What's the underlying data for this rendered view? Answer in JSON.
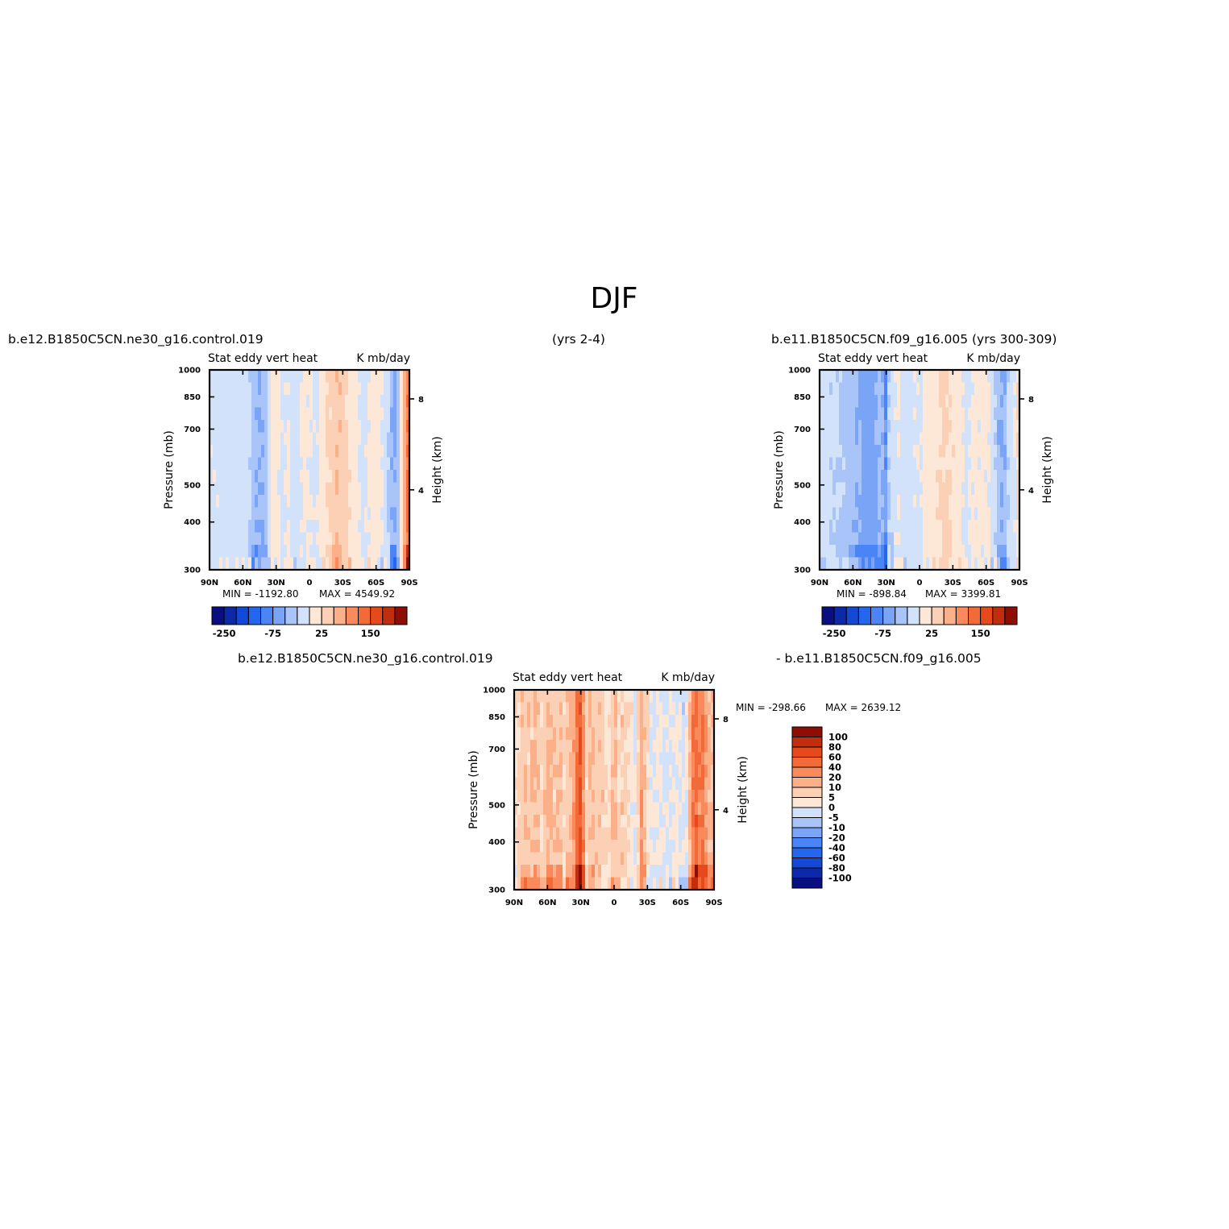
{
  "figure": {
    "season": "DJF",
    "case_left": "b.e12.B1850C5CN.ne30_g16.control.019",
    "years_left": "(yrs 2-4)",
    "case_right": "b.e11.B1850C5CN.f09_g16.005 (yrs 300-309)",
    "diff_left": "b.e12.B1850C5CN.ne30_g16.control.019",
    "diff_right": "- b.e11.B1850C5CN.f09_g16.005"
  },
  "colors": {
    "blues": [
      "#0a0f80",
      "#0c2aa8",
      "#1448d6",
      "#2466ee",
      "#4a84f6",
      "#7aa4f6",
      "#a8c4f8",
      "#d2e2fb"
    ],
    "reds": [
      "#fde8d8",
      "#fcd0b4",
      "#fbb08a",
      "#fa8a5c",
      "#f26a38",
      "#e64a1c",
      "#c02e0e",
      "#8e0e06"
    ]
  },
  "chart_data": [
    {
      "type": "heatmap",
      "title": "Stat eddy vert heat",
      "units": "K mb/day",
      "xlabel": "",
      "ylabel": "Pressure (mb)",
      "ylabel_right": "Height (km)",
      "x_ticks": [
        "90N",
        "60N",
        "30N",
        "0",
        "30S",
        "60S",
        "90S"
      ],
      "x_range": [
        90,
        -90
      ],
      "y_ticks": [
        300,
        400,
        500,
        700,
        850,
        1000
      ],
      "y_range": [
        1000,
        300
      ],
      "y_scale": "log",
      "height_ticks": [
        "8",
        "4"
      ],
      "min_label": "MIN = -1192.80",
      "max_label": "MAX = 4549.92",
      "stats": {
        "min": -1192.8,
        "max": 4549.92
      },
      "legend_ticks": [
        "-250",
        "-75",
        "25",
        "150"
      ],
      "levels": [
        -250,
        -200,
        -150,
        -100,
        -75,
        -50,
        -25,
        0,
        25,
        50,
        75,
        100,
        150,
        200,
        250
      ],
      "profile": [
        {
          "lat": 90,
          "v": -0.3
        },
        {
          "lat": 80,
          "v": -0.35
        },
        {
          "lat": 70,
          "v": -0.45
        },
        {
          "lat": 60,
          "v": -0.4
        },
        {
          "lat": 55,
          "v": -0.6
        },
        {
          "lat": 50,
          "v": -1.7
        },
        {
          "lat": 45,
          "v": -2.1
        },
        {
          "lat": 40,
          "v": -1.8
        },
        {
          "lat": 36,
          "v": -0.5
        },
        {
          "lat": 33,
          "v": 0.6
        },
        {
          "lat": 30,
          "v": 0.4
        },
        {
          "lat": 25,
          "v": -0.3
        },
        {
          "lat": 20,
          "v": 0.2
        },
        {
          "lat": 15,
          "v": -0.5
        },
        {
          "lat": 10,
          "v": -0.4
        },
        {
          "lat": 5,
          "v": 0.3
        },
        {
          "lat": 0,
          "v": 0.2
        },
        {
          "lat": -5,
          "v": -0.35
        },
        {
          "lat": -12,
          "v": 0.5
        },
        {
          "lat": -20,
          "v": 1.3
        },
        {
          "lat": -25,
          "v": 2.0
        },
        {
          "lat": -30,
          "v": 1.7
        },
        {
          "lat": -35,
          "v": 0.9
        },
        {
          "lat": -42,
          "v": 0.3
        },
        {
          "lat": -48,
          "v": -0.4
        },
        {
          "lat": -55,
          "v": 0.3
        },
        {
          "lat": -62,
          "v": 0.4
        },
        {
          "lat": -68,
          "v": -0.3
        },
        {
          "lat": -72,
          "v": -1.2
        },
        {
          "lat": -76,
          "v": -2.4
        },
        {
          "lat": -80,
          "v": -1.4
        },
        {
          "lat": -84,
          "v": 1.5
        },
        {
          "lat": -88,
          "v": 4.0
        }
      ]
    },
    {
      "type": "heatmap",
      "title": "Stat eddy vert heat",
      "units": "K mb/day",
      "xlabel": "",
      "ylabel": "Pressure (mb)",
      "ylabel_right": "Height (km)",
      "x_ticks": [
        "90N",
        "60N",
        "30N",
        "0",
        "30S",
        "60S",
        "90S"
      ],
      "x_range": [
        90,
        -90
      ],
      "y_ticks": [
        300,
        400,
        500,
        700,
        850,
        1000
      ],
      "y_range": [
        1000,
        300
      ],
      "y_scale": "log",
      "height_ticks": [
        "8",
        "4"
      ],
      "min_label": "MIN = -898.84",
      "max_label": "MAX = 3399.81",
      "stats": {
        "min": -898.84,
        "max": 3399.81
      },
      "legend_ticks": [
        "-250",
        "-75",
        "25",
        "150"
      ],
      "levels": [
        -250,
        -200,
        -150,
        -100,
        -75,
        -50,
        -25,
        0,
        25,
        50,
        75,
        100,
        150,
        200,
        250
      ],
      "profile": [
        {
          "lat": 90,
          "v": -0.3
        },
        {
          "lat": 80,
          "v": -0.8
        },
        {
          "lat": 72,
          "v": -1.1
        },
        {
          "lat": 65,
          "v": -1.4
        },
        {
          "lat": 58,
          "v": -1.8
        },
        {
          "lat": 52,
          "v": -2.3
        },
        {
          "lat": 46,
          "v": -2.6
        },
        {
          "lat": 40,
          "v": -2.3
        },
        {
          "lat": 35,
          "v": -1.5
        },
        {
          "lat": 31,
          "v": -3.2
        },
        {
          "lat": 28,
          "v": -1.2
        },
        {
          "lat": 24,
          "v": -0.6
        },
        {
          "lat": 20,
          "v": 0.2
        },
        {
          "lat": 15,
          "v": -0.5
        },
        {
          "lat": 10,
          "v": -0.4
        },
        {
          "lat": 5,
          "v": -0.3
        },
        {
          "lat": 0,
          "v": -0.3
        },
        {
          "lat": -5,
          "v": 0.3
        },
        {
          "lat": -12,
          "v": 0.6
        },
        {
          "lat": -18,
          "v": 1.0
        },
        {
          "lat": -23,
          "v": 1.3
        },
        {
          "lat": -28,
          "v": 0.9
        },
        {
          "lat": -35,
          "v": 0.5
        },
        {
          "lat": -42,
          "v": -0.3
        },
        {
          "lat": -48,
          "v": 0.2
        },
        {
          "lat": -55,
          "v": 0.3
        },
        {
          "lat": -62,
          "v": 0.3
        },
        {
          "lat": -68,
          "v": -0.8
        },
        {
          "lat": -73,
          "v": -2.2
        },
        {
          "lat": -77,
          "v": -1.8
        },
        {
          "lat": -81,
          "v": -0.4
        },
        {
          "lat": -85,
          "v": -0.3
        },
        {
          "lat": -88,
          "v": 1.0
        }
      ]
    },
    {
      "type": "heatmap",
      "title": "Stat eddy vert heat",
      "units": "K mb/day",
      "xlabel": "",
      "ylabel": "Pressure (mb)",
      "ylabel_right": "Height (km)",
      "x_ticks": [
        "90N",
        "60N",
        "30N",
        "0",
        "30S",
        "60S",
        "90S"
      ],
      "x_range": [
        90,
        -90
      ],
      "y_ticks": [
        300,
        400,
        500,
        700,
        850,
        1000
      ],
      "y_range": [
        1000,
        300
      ],
      "y_scale": "log",
      "height_ticks": [
        "8",
        "4"
      ],
      "min_label": "MIN = -298.66",
      "max_label": "MAX = 2639.12",
      "stats": {
        "min": -298.66,
        "max": 2639.12
      },
      "legend_ticks": [
        "100",
        "80",
        "60",
        "40",
        "20",
        "10",
        "5",
        "0",
        "-5",
        "-10",
        "-20",
        "-40",
        "-60",
        "-80",
        "-100"
      ],
      "levels": [
        -100,
        -80,
        -60,
        -40,
        -20,
        -10,
        -5,
        0,
        5,
        10,
        20,
        40,
        60,
        80,
        100
      ],
      "profile": [
        {
          "lat": 90,
          "v": 0.4
        },
        {
          "lat": 85,
          "v": 1.2
        },
        {
          "lat": 80,
          "v": 2.0
        },
        {
          "lat": 75,
          "v": 1.4
        },
        {
          "lat": 70,
          "v": 2.3
        },
        {
          "lat": 66,
          "v": 1.1
        },
        {
          "lat": 62,
          "v": 1.8
        },
        {
          "lat": 58,
          "v": 2.6
        },
        {
          "lat": 54,
          "v": 1.5
        },
        {
          "lat": 50,
          "v": 2.1
        },
        {
          "lat": 45,
          "v": 1.2
        },
        {
          "lat": 41,
          "v": 1.9
        },
        {
          "lat": 37,
          "v": 2.4
        },
        {
          "lat": 34,
          "v": 4.2
        },
        {
          "lat": 31,
          "v": 5.5
        },
        {
          "lat": 28,
          "v": 3.8
        },
        {
          "lat": 25,
          "v": 1.2
        },
        {
          "lat": 20,
          "v": 2.2
        },
        {
          "lat": 16,
          "v": 1.4
        },
        {
          "lat": 12,
          "v": 1.9
        },
        {
          "lat": 8,
          "v": 0.7
        },
        {
          "lat": 3,
          "v": 1.2
        },
        {
          "lat": 0,
          "v": 2.2
        },
        {
          "lat": -4,
          "v": 1.0
        },
        {
          "lat": -8,
          "v": 1.6
        },
        {
          "lat": -12,
          "v": 0.8
        },
        {
          "lat": -16,
          "v": 0.5
        },
        {
          "lat": -19,
          "v": -0.4
        },
        {
          "lat": -22,
          "v": 1.6
        },
        {
          "lat": -25,
          "v": 3.0
        },
        {
          "lat": -28,
          "v": 1.8
        },
        {
          "lat": -32,
          "v": 0.4
        },
        {
          "lat": -36,
          "v": -0.3
        },
        {
          "lat": -40,
          "v": 0.5
        },
        {
          "lat": -45,
          "v": -0.3
        },
        {
          "lat": -50,
          "v": -0.4
        },
        {
          "lat": -55,
          "v": 0.3
        },
        {
          "lat": -60,
          "v": -0.3
        },
        {
          "lat": -64,
          "v": -0.5
        },
        {
          "lat": -67,
          "v": 1.2
        },
        {
          "lat": -70,
          "v": 3.3
        },
        {
          "lat": -73,
          "v": 4.8
        },
        {
          "lat": -77,
          "v": 3.6
        },
        {
          "lat": -81,
          "v": 4.2
        },
        {
          "lat": -84,
          "v": 2.4
        },
        {
          "lat": -88,
          "v": 2.0
        }
      ]
    }
  ]
}
